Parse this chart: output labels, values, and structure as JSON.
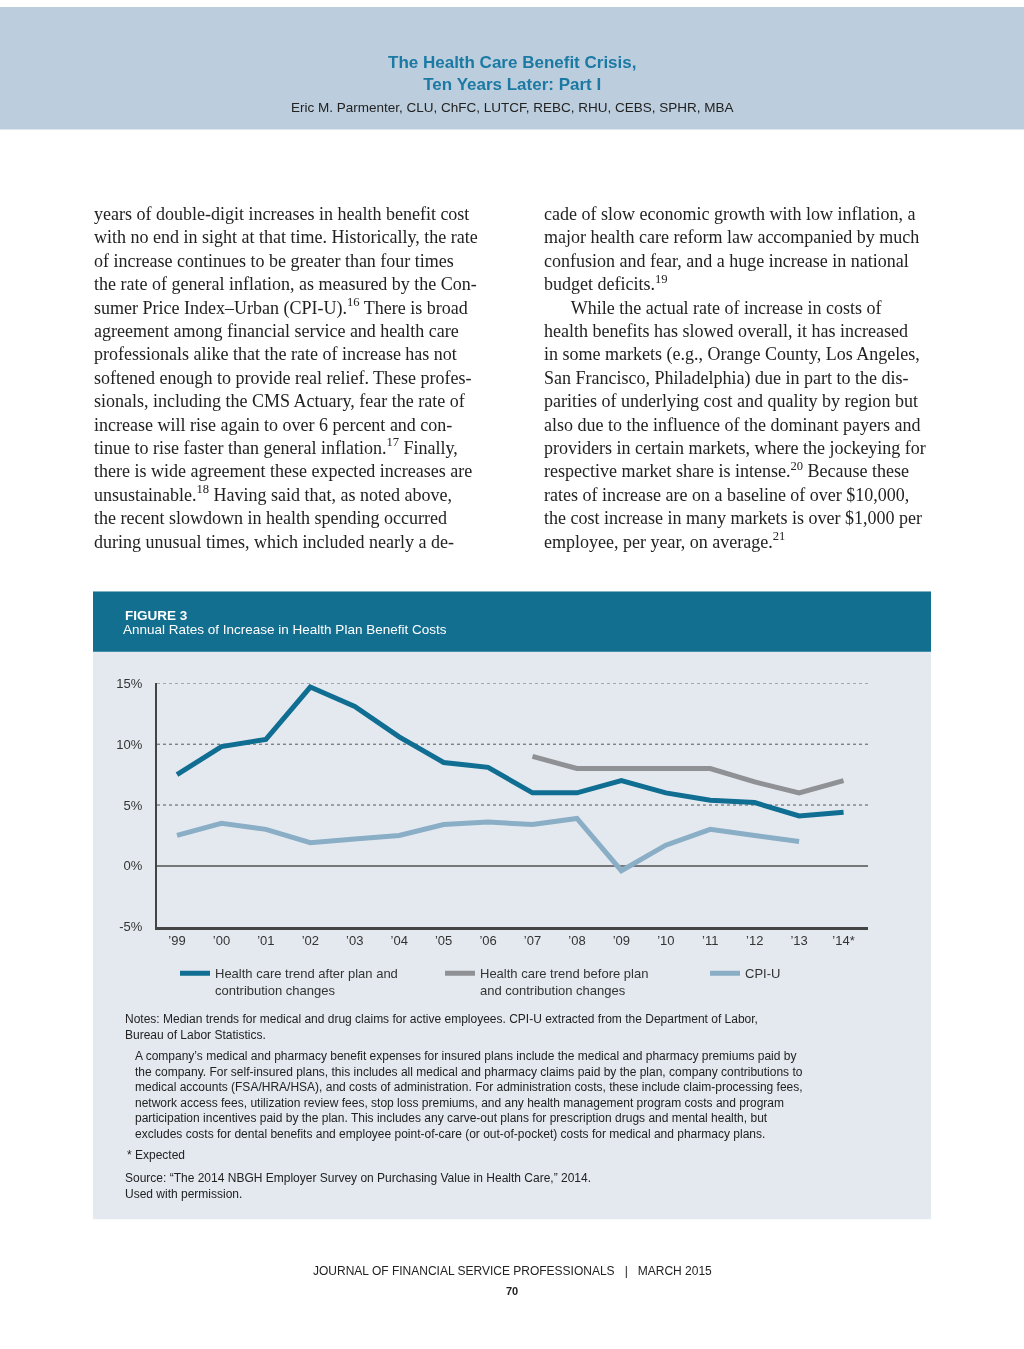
{
  "chart_data": {
    "type": "line",
    "title": "Annual Rates of Increase in Health Plan Benefit Costs",
    "categories": [
      "’99",
      "’00",
      "’01",
      "’02",
      "’03",
      "’04",
      "’05",
      "’06",
      "’07",
      "’08",
      "’09",
      "’10",
      "’11",
      "’12",
      "’13",
      "’14*"
    ],
    "series": [
      {
        "name": "Health care trend after plan and contribution changes",
        "color": "#0f6e92",
        "values": [
          7.5,
          9.8,
          10.4,
          14.7,
          13.1,
          10.6,
          8.5,
          8.1,
          6.0,
          6.0,
          7.0,
          6.0,
          5.4,
          5.2,
          4.1,
          4.4
        ]
      },
      {
        "name": "Health care trend before plan and contribution changes",
        "color": "#8f9194",
        "values": [
          null,
          null,
          null,
          null,
          null,
          null,
          null,
          null,
          9.0,
          8.0,
          8.0,
          8.0,
          8.0,
          6.9,
          6.0,
          7.0
        ]
      },
      {
        "name": "CPI-U",
        "color": "#8aaec6",
        "values": [
          2.5,
          3.5,
          3.0,
          1.9,
          2.2,
          2.5,
          3.4,
          3.6,
          3.4,
          3.9,
          -0.4,
          1.7,
          3.0,
          2.5,
          2.0,
          null
        ]
      }
    ],
    "ylim": [
      -5,
      15
    ],
    "yticks": [
      {
        "value": -5,
        "label": "-5%"
      },
      {
        "value": 0,
        "label": "0%"
      },
      {
        "value": 5,
        "label": "5%"
      },
      {
        "value": 10,
        "label": "10%"
      },
      {
        "value": 15,
        "label": "15%"
      }
    ],
    "grid": "y",
    "legend": "bottom",
    "marker": "none",
    "line_style": "solid",
    "annotations": [
      "The Health Care Benefit Crisis,\nTen Years Later: Part I",
      "Eric M. Parmenter, CLU, ChFC, LUTCF, REBC, RHU, CEBS, SPHR, MBA",
      "years of double-digit increases in health benefit cost\nwith no end in sight at that time. Historically, the rate\nof increase continues to be greater than four times\nthe rate of general inflation, as measured by the Con-\nsumer Price Index–Urban (CPI-U).$^{16}$ There is broad\nagreement among financial service and health care\nprofessionals alike that the rate of increase has not\nsoftened enough to provide real relief. These profes-\nsionals, including the CMS Actuary, fear the rate of\nincrease will rise again to over 6 percent and con-\ntinue to rise faster than general inflation.$^{17}$ Finally,\nthere is wide agreement these expected increases are\nunsustainable.$^{18}$ Having said that, as noted above,\nthe recent slowdown in health spending occurred\nduring unusual times, which included nearly a de-",
      "cade of slow economic growth with low inflation, a\nmajor health care reform law accompanied by much\nconfusion and fear, and a huge increase in national\nbudget deficits.$^{19}$\n      While the actual rate of increase in costs of\nhealth benefits has slowed overall, it has increased\nin some markets (e.g., Orange County, Los Angeles,\nSan Francisco, Philadelphia) due in part to the dis-\nparities of underlying cost and quality by region but\nalso due to the influence of the dominant payers and\nproviders in certain markets, where the jockeying for\nrespective market share is intense.$^{20}$ Because these\nrates of increase are on a baseline of over $10,000,\nthe cost increase in many markets is over $1,000 per\nemployee, per year, on average.$^{21}$",
      "FIGURE 3",
      "Notes: Median trends for medical and drug claims for active employees. CPI-U extracted from the Department of Labor,\nBureau of Labor Statistics.",
      "A company’s medical and pharmacy benefit expenses for insured plans include the medical and pharmacy premiums paid by\nthe company. For self-insured plans, this includes all medical and pharmacy claims paid by the plan, company contributions to\nmedical accounts (FSA/HRA/HSA), and costs of administration. For administration costs, these include claim-processing fees,\nnetwork access fees, utilization review fees, stop loss premiums, and any health management program costs and program\nparticipation incentives paid by the plan. This includes any carve-out plans for prescription drugs and mental health, but\nexcludes costs for dental benefits and employee point-of-care (or out-of-pocket) costs for medical and pharmacy plans.",
      "* Expected",
      "Source: “The 2014 NBGH Employer Survey on Purchasing Value in Health Care,” 2014.\nUsed with permission.",
      "JOURNAL OF FINANCIAL SERVICE PROFESSIONALS   |   MARCH 2015",
      "70"
    ]
  }
}
